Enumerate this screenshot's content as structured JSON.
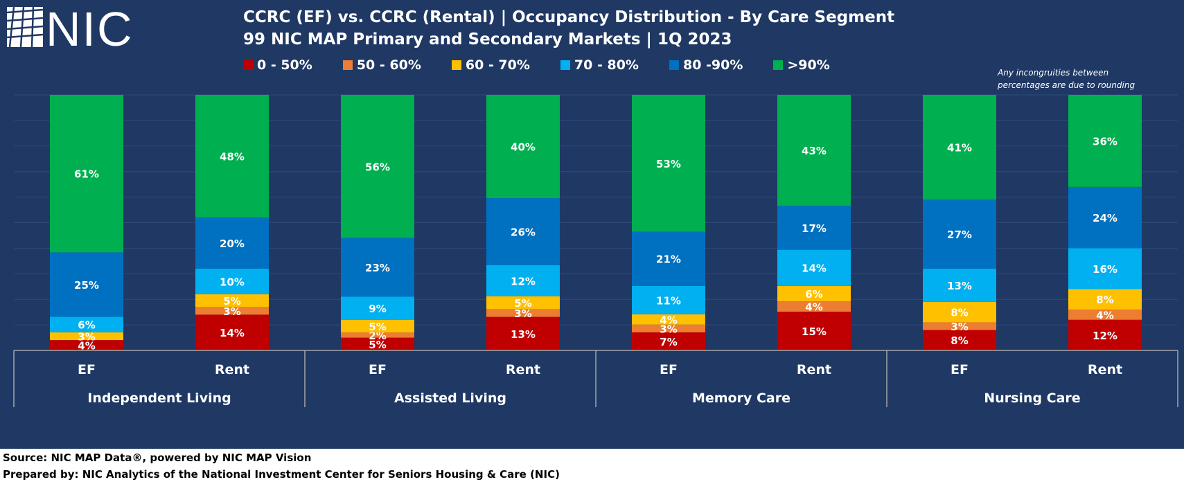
{
  "logo": {
    "text": "NIC"
  },
  "header": {
    "title_line1": "CCRC (EF) vs. CCRC (Rental) | Occupancy Distribution - By Care Segment",
    "title_line2": "99 NIC MAP Primary and Secondary Markets | 1Q 2023"
  },
  "note": {
    "line1": "Any incongruities between",
    "line2": "percentages are due to rounding"
  },
  "legend": [
    {
      "label": "0 - 50%",
      "color": "#c00000"
    },
    {
      "label": "50 - 60%",
      "color": "#ed7d31"
    },
    {
      "label": "60 - 70%",
      "color": "#ffc000"
    },
    {
      "label": "70 - 80%",
      "color": "#00b0f0"
    },
    {
      "label": "80 -90%",
      "color": "#0070c0"
    },
    {
      "label": ">90%",
      "color": "#00b050"
    }
  ],
  "chart_data": {
    "type": "bar",
    "stacked": true,
    "percent_stacked": true,
    "title": "CCRC (EF) vs. CCRC (Rental) | Occupancy Distribution - By Care Segment",
    "subtitle": "99 NIC MAP Primary and Secondary Markets | 1Q 2023",
    "ylim": [
      0,
      100
    ],
    "groups": [
      "Independent Living",
      "Assisted Living",
      "Memory Care",
      "Nursing Care"
    ],
    "categories": [
      "EF",
      "Rent",
      "EF",
      "Rent",
      "EF",
      "Rent",
      "EF",
      "Rent"
    ],
    "series": [
      {
        "name": "0 - 50%",
        "color": "#c00000",
        "values": [
          4,
          14,
          5,
          13,
          7,
          15,
          8,
          12
        ]
      },
      {
        "name": "50 - 60%",
        "color": "#ed7d31",
        "values": [
          0,
          3,
          2,
          3,
          3,
          4,
          3,
          4
        ]
      },
      {
        "name": "60 - 70%",
        "color": "#ffc000",
        "values": [
          3,
          5,
          5,
          5,
          4,
          6,
          8,
          8
        ]
      },
      {
        "name": "70 - 80%",
        "color": "#00b0f0",
        "values": [
          6,
          10,
          9,
          12,
          11,
          14,
          13,
          16
        ]
      },
      {
        "name": "80 -90%",
        "color": "#0070c0",
        "values": [
          25,
          20,
          23,
          26,
          21,
          17,
          27,
          24
        ]
      },
      {
        "name": ">90%",
        "color": "#00b050",
        "values": [
          61,
          48,
          56,
          40,
          53,
          43,
          41,
          36
        ]
      }
    ],
    "data_labels": [
      [
        "4%",
        "14%",
        "5%",
        "13%",
        "7%",
        "15%",
        "8%",
        "12%"
      ],
      [
        "",
        "3%",
        "2%",
        "3%",
        "3%",
        "4%",
        "3%",
        "4%"
      ],
      [
        "3%",
        "5%",
        "5%",
        "5%",
        "4%",
        "6%",
        "8%",
        "8%"
      ],
      [
        "6%",
        "10%",
        "9%",
        "12%",
        "11%",
        "14%",
        "13%",
        "16%"
      ],
      [
        "25%",
        "20%",
        "23%",
        "26%",
        "21%",
        "17%",
        "27%",
        "24%"
      ],
      [
        "61%",
        "48%",
        "56%",
        "40%",
        "53%",
        "43%",
        "41%",
        "36%"
      ]
    ]
  },
  "footer": {
    "source": "Source: NIC MAP Data®, powered by NIC MAP Vision",
    "prepared": "Prepared by: NIC Analytics of the National Investment Center for Seniors Housing & Care (NIC)"
  }
}
